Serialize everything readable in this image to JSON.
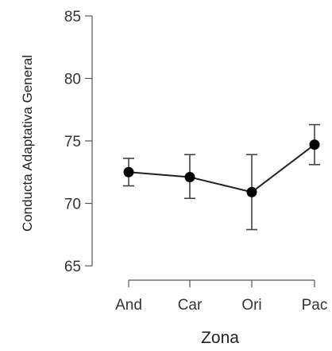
{
  "chart_data": {
    "type": "line",
    "title": "",
    "xlabel": "Zona",
    "ylabel": "Conducta Adaptativa General",
    "categories": [
      "And",
      "Car",
      "Ori",
      "Pac"
    ],
    "values": [
      72.5,
      72.1,
      70.9,
      74.7
    ],
    "error_low": [
      71.4,
      70.4,
      67.9,
      73.1
    ],
    "error_high": [
      73.6,
      73.9,
      73.9,
      76.3
    ],
    "ylim": [
      65,
      85
    ],
    "yticks": [
      65,
      70,
      75,
      80,
      85
    ],
    "grid": false,
    "legend": "none",
    "colors": {
      "line": "#222222",
      "marker": "#000000",
      "axis": "#555555"
    }
  }
}
